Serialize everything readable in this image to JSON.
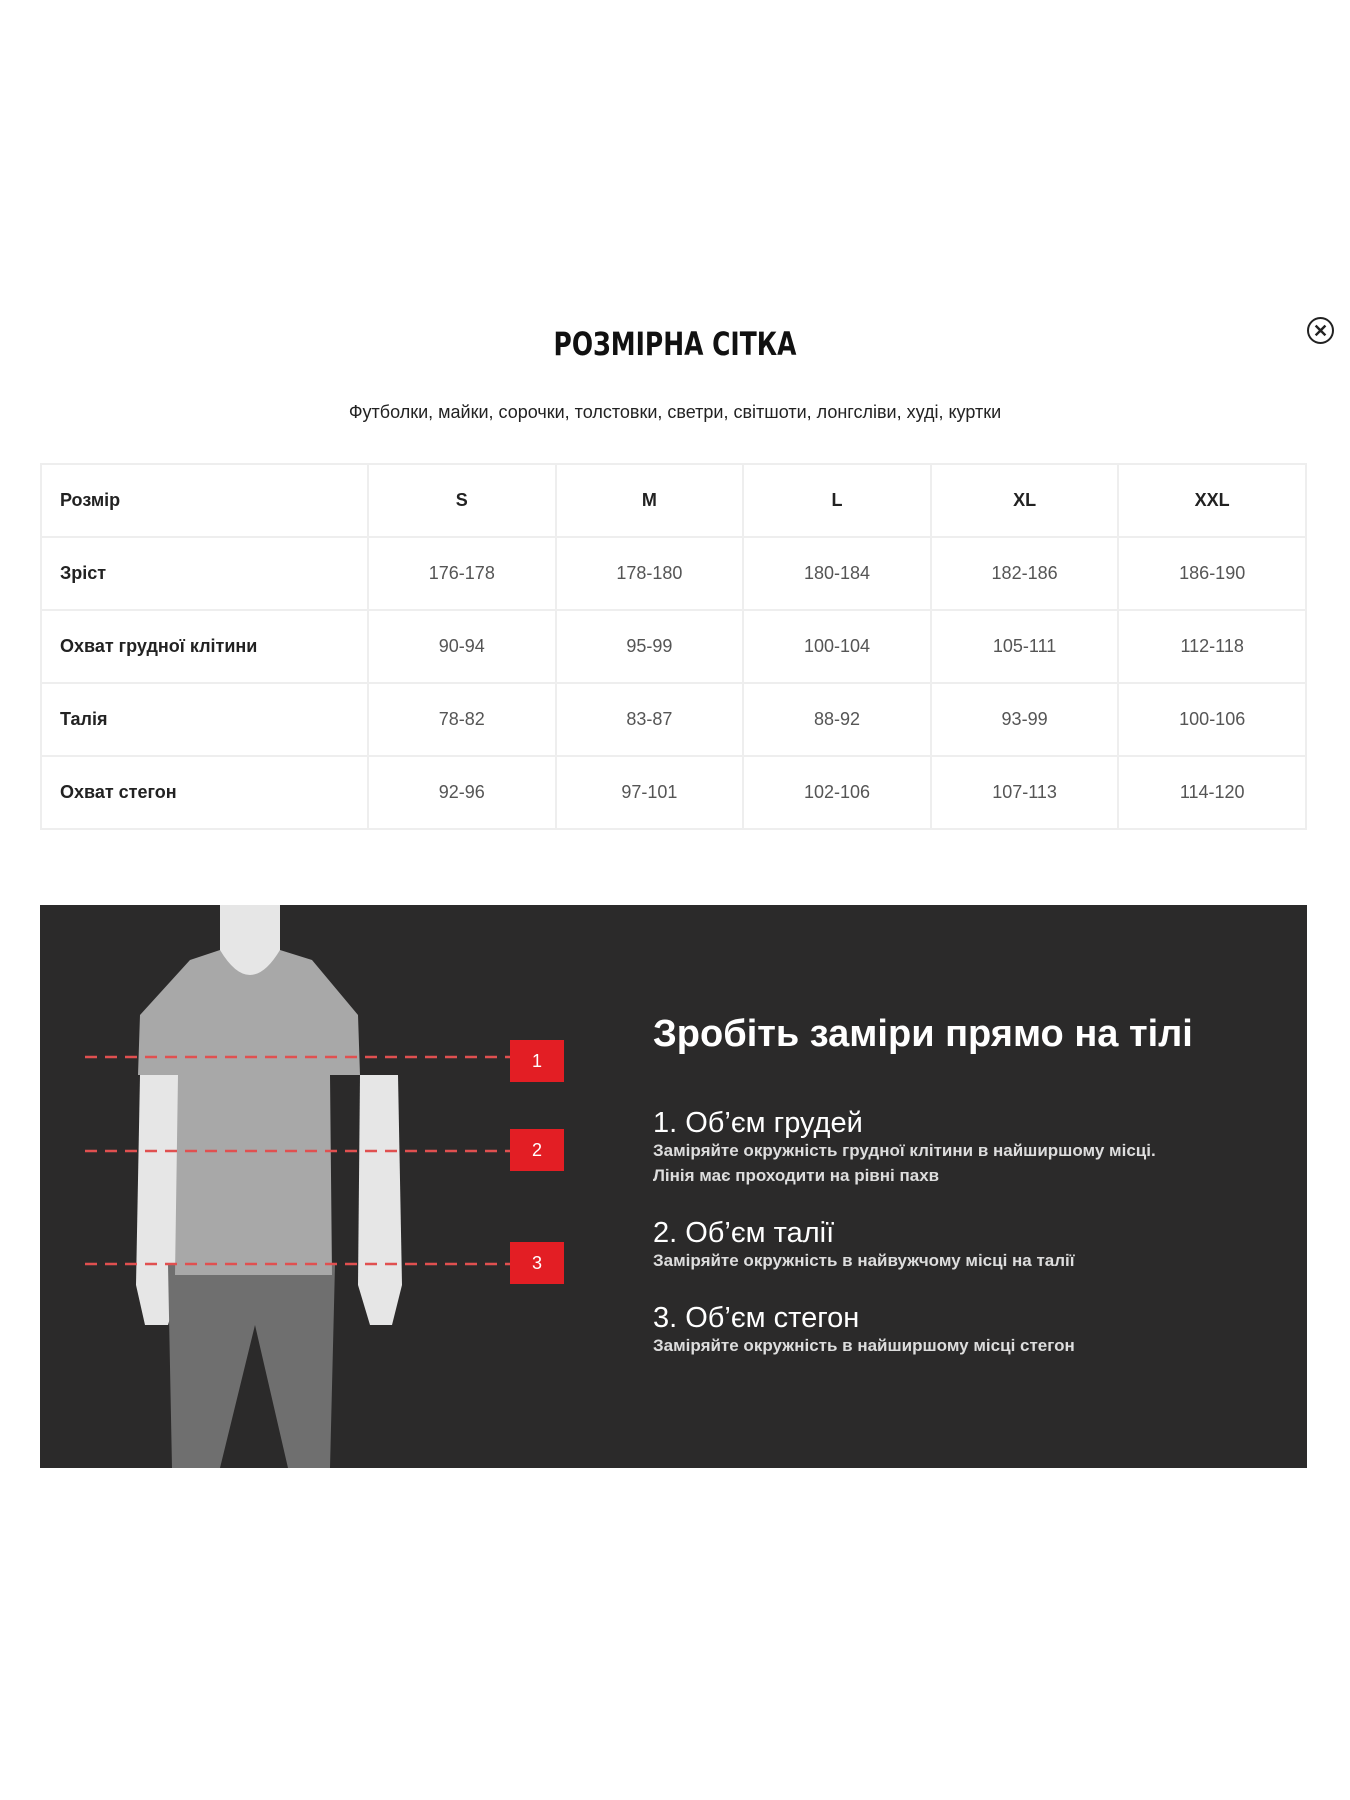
{
  "header": {
    "title": "РОЗМІРНА СІТКА",
    "close_icon": "close-circle-icon",
    "subtitle": "Футболки, майки, сорочки, толстовки, светри, світшоти, лонгсліви, худі, куртки"
  },
  "table": {
    "columns": [
      "Розмір",
      "S",
      "M",
      "L",
      "XL",
      "XXL"
    ],
    "rows": [
      {
        "label": "Зріст",
        "values": [
          "176-178",
          "178-180",
          "180-184",
          "182-186",
          "186-190"
        ]
      },
      {
        "label": "Охват грудної клітини",
        "values": [
          "90-94",
          "95-99",
          "100-104",
          "105-111",
          "112-118"
        ]
      },
      {
        "label": "Талія",
        "values": [
          "78-82",
          "83-87",
          "88-92",
          "93-99",
          "100-106"
        ]
      },
      {
        "label": "Охват стегон",
        "values": [
          "92-96",
          "97-101",
          "102-106",
          "107-113",
          "114-120"
        ]
      }
    ]
  },
  "guide": {
    "heading": "Зробіть заміри прямо на тілі",
    "markers": [
      "1",
      "2",
      "3"
    ],
    "items": [
      {
        "title": "1. Об’єм грудей",
        "desc1": "Заміряйте окружність грудної клітини в найширшому місці.",
        "desc2": "Лінія має проходити на рівні пахв"
      },
      {
        "title": "2. Об’єм талії",
        "desc1": "Заміряйте окружність в найвужчому місці на талії"
      },
      {
        "title": "3. Об’єм стегон",
        "desc1": "Заміряйте окружність в найширшому місці стегон"
      }
    ],
    "colors": {
      "panel": "#2b2a2a",
      "marker": "#e31e24"
    }
  }
}
